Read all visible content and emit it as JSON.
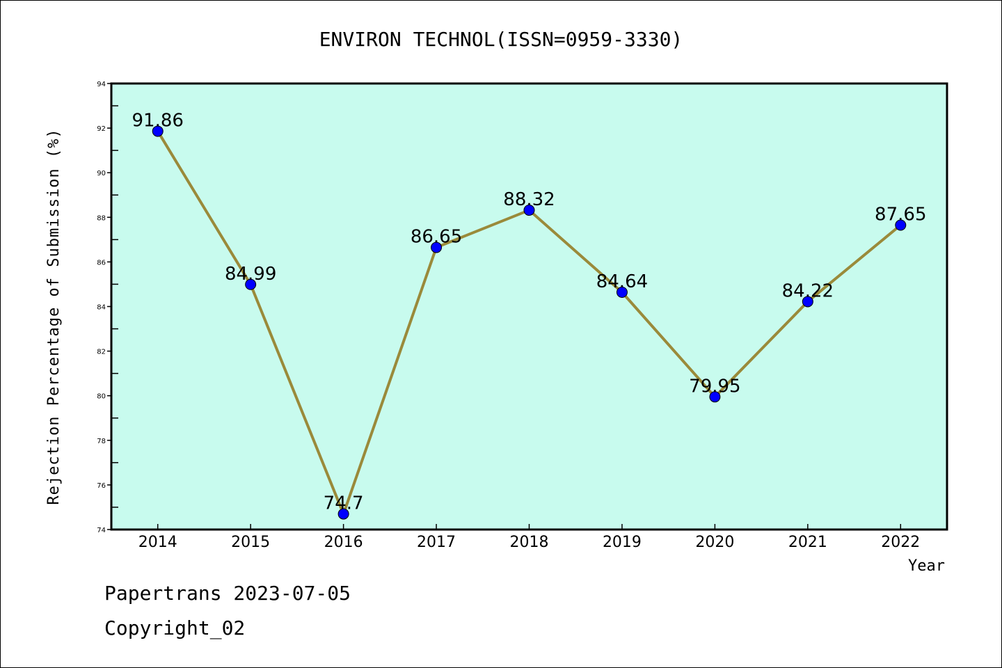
{
  "chart_data": {
    "type": "line",
    "title": "ENVIRON TECHNOL(ISSN=0959-3330)",
    "xlabel": "Year",
    "ylabel": "Rejection Percentage of Submission (%)",
    "categories": [
      "2014",
      "2015",
      "2016",
      "2017",
      "2018",
      "2019",
      "2020",
      "2021",
      "2022"
    ],
    "values": [
      91.86,
      84.99,
      74.7,
      86.65,
      88.32,
      84.64,
      79.95,
      84.22,
      87.65
    ],
    "data_labels": [
      "91.86",
      "84.99",
      "74.7",
      "86.65",
      "88.32",
      "84.64",
      "79.95",
      "84.22",
      "87.65"
    ],
    "ylim": [
      74,
      94
    ],
    "yticks": [
      74,
      76,
      78,
      80,
      82,
      84,
      86,
      88,
      90,
      92,
      94
    ],
    "grid": false,
    "colors": {
      "plot_bg": "#c8fbee",
      "line": "#9a8a3a",
      "marker": "#0000ff"
    }
  },
  "footer": {
    "line1": "Papertrans 2023-07-05",
    "line2": "Copyright_02"
  }
}
